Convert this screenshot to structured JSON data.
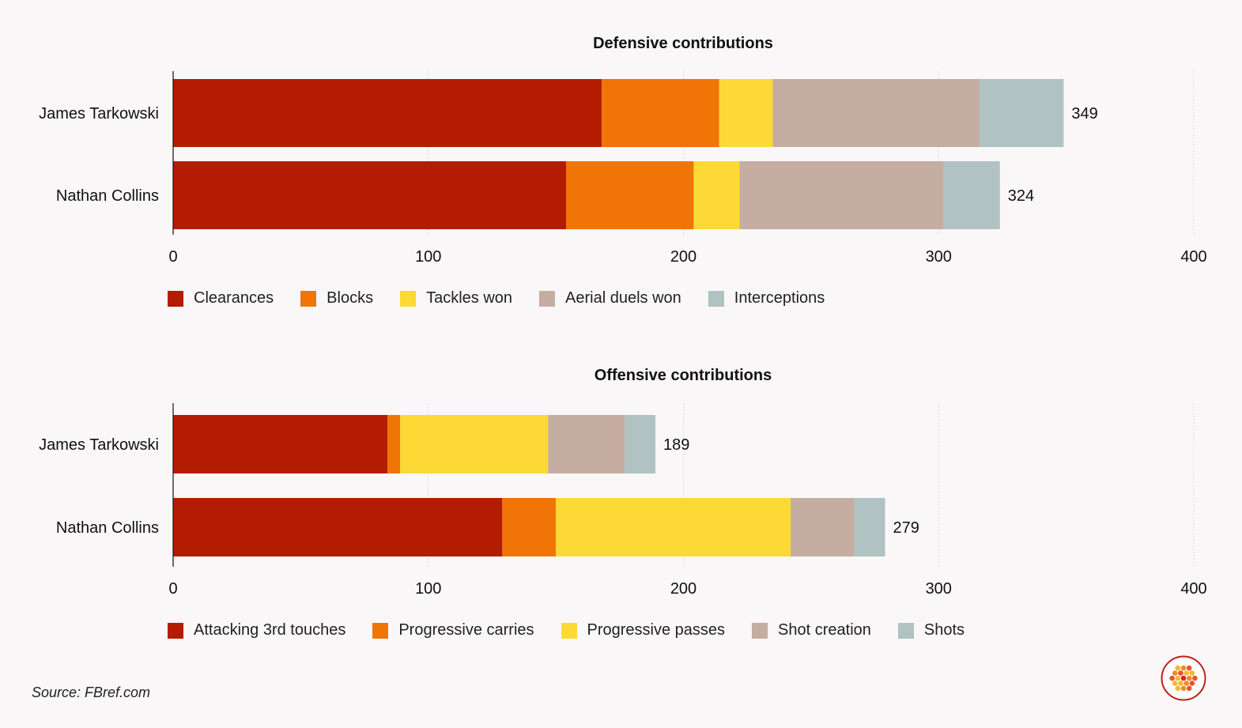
{
  "source": "Source: FBref.com",
  "charts": [
    {
      "type": "bar",
      "orientation": "horizontal",
      "stacked": true,
      "title": "Defensive contributions",
      "categories": [
        "James Tarkowski",
        "Nathan Collins"
      ],
      "series": [
        {
          "name": "Clearances",
          "color": "#b41c00",
          "values": [
            168,
            154
          ]
        },
        {
          "name": "Blocks",
          "color": "#f07406",
          "values": [
            46,
            50
          ]
        },
        {
          "name": "Tackles won",
          "color": "#fdd935",
          "values": [
            21,
            18
          ]
        },
        {
          "name": "Aerial duels won",
          "color": "#c5ada1",
          "values": [
            81,
            80
          ]
        },
        {
          "name": "Interceptions",
          "color": "#b0c2c1",
          "values": [
            33,
            22
          ]
        }
      ],
      "totals": [
        349,
        324
      ],
      "xlim": [
        0,
        400
      ],
      "xticks": [
        0,
        100,
        200,
        300,
        400
      ],
      "grid": true
    },
    {
      "type": "bar",
      "orientation": "horizontal",
      "stacked": true,
      "title": "Offensive contributions",
      "categories": [
        "James Tarkowski",
        "Nathan Collins"
      ],
      "series": [
        {
          "name": "Attacking 3rd touches",
          "color": "#b41c00",
          "values": [
            84,
            129
          ]
        },
        {
          "name": "Progressive carries",
          "color": "#f07406",
          "values": [
            5,
            21
          ]
        },
        {
          "name": "Progressive passes",
          "color": "#fdd935",
          "values": [
            58,
            92
          ]
        },
        {
          "name": "Shot creation",
          "color": "#c5ada1",
          "values": [
            30,
            25
          ]
        },
        {
          "name": "Shots",
          "color": "#b0c2c1",
          "values": [
            12,
            12
          ]
        }
      ],
      "totals": [
        189,
        279
      ],
      "xlim": [
        0,
        400
      ],
      "xticks": [
        0,
        100,
        200,
        300,
        400
      ],
      "grid": true
    }
  ]
}
